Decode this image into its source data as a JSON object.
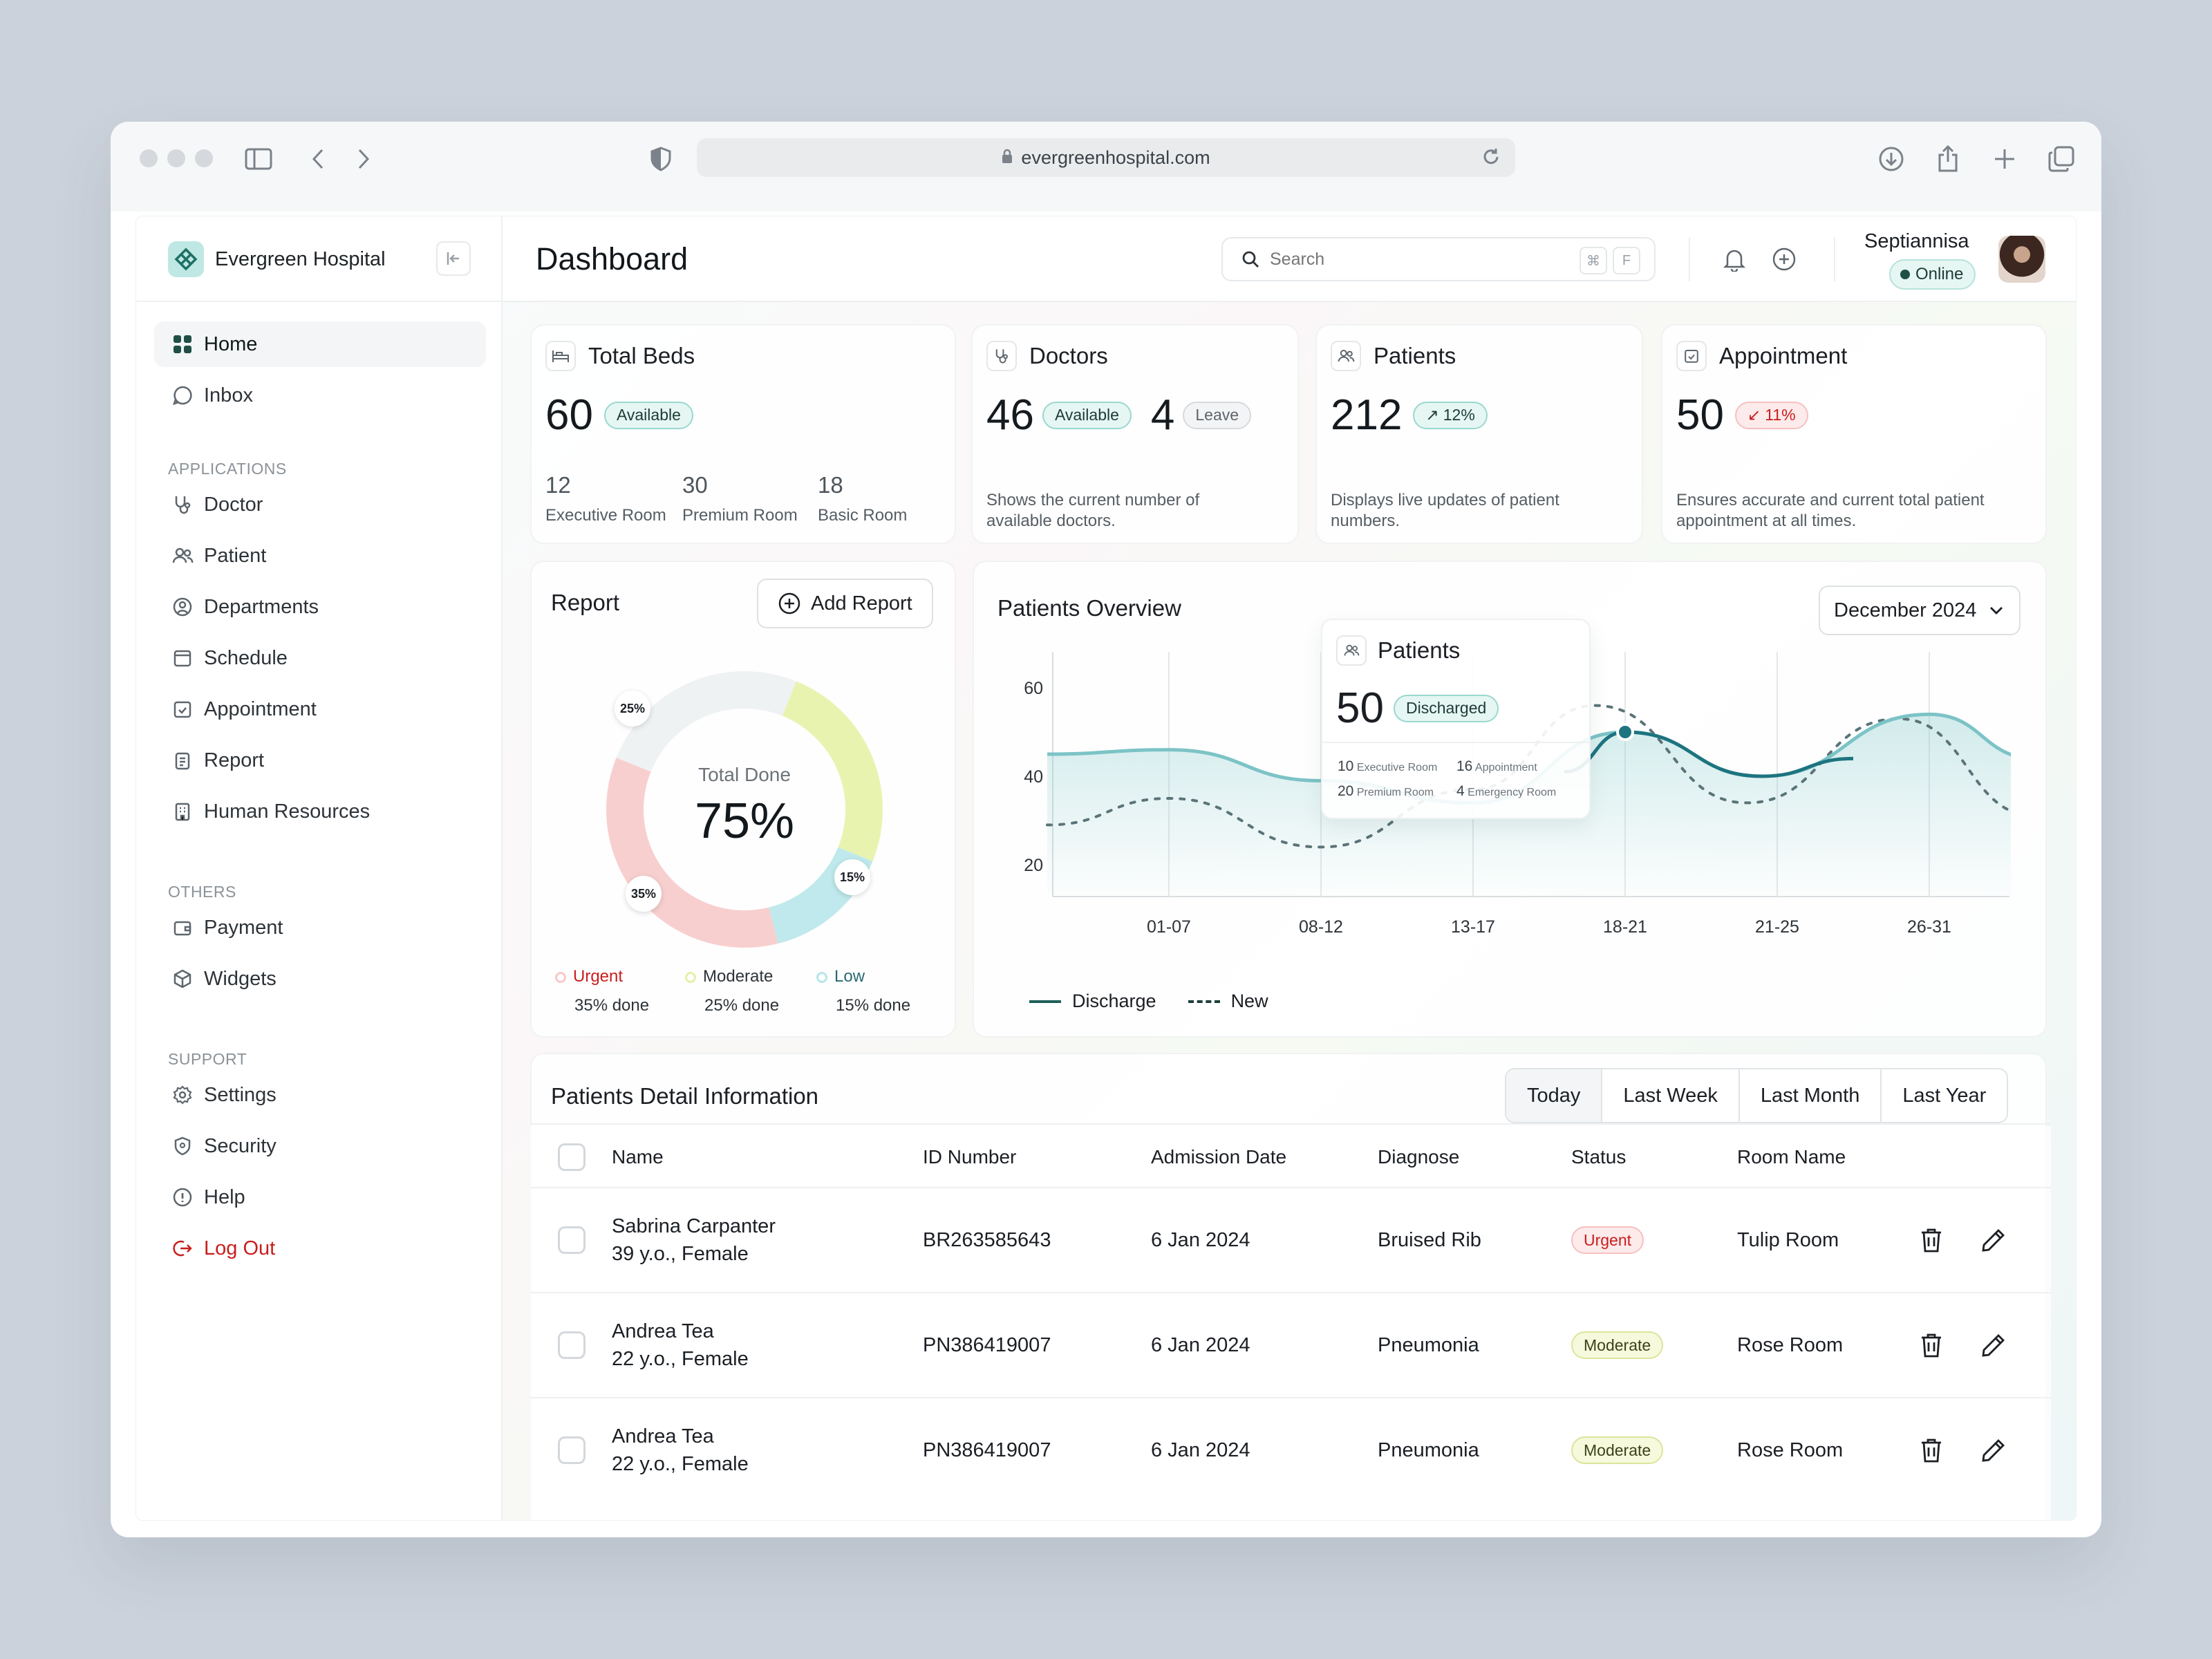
{
  "browser": {
    "url": "evergreenhospital.com"
  },
  "sidebar": {
    "brand": "Evergreen Hospital",
    "main_items": [
      {
        "label": "Home"
      },
      {
        "label": "Inbox"
      }
    ],
    "applications_heading": "APPLICATIONS",
    "applications": [
      {
        "label": "Doctor"
      },
      {
        "label": "Patient"
      },
      {
        "label": "Departments"
      },
      {
        "label": "Schedule"
      },
      {
        "label": "Appointment"
      },
      {
        "label": "Report"
      },
      {
        "label": "Human Resources"
      }
    ],
    "others_heading": "OTHERS",
    "others": [
      {
        "label": "Payment"
      },
      {
        "label": "Widgets"
      }
    ],
    "support_heading": "SUPPORT",
    "support": [
      {
        "label": "Settings"
      },
      {
        "label": "Security"
      },
      {
        "label": "Help"
      },
      {
        "label": "Log Out"
      }
    ]
  },
  "header": {
    "title": "Dashboard",
    "search_placeholder": "Search",
    "shortcut_cmd": "⌘",
    "shortcut_key": "F",
    "user_name": "Septiannisa",
    "user_status": "Online"
  },
  "cards": {
    "beds": {
      "title": "Total Beds",
      "value": "60",
      "badge": "Available",
      "rooms": [
        {
          "value": "12",
          "label": "Executive Room"
        },
        {
          "value": "30",
          "label": "Premium Room"
        },
        {
          "value": "18",
          "label": "Basic Room"
        }
      ]
    },
    "doctors": {
      "title": "Doctors",
      "value": "46",
      "badge": "Available",
      "leave_value": "4",
      "leave_badge": "Leave",
      "desc": "Shows the current number of available doctors."
    },
    "patients": {
      "title": "Patients",
      "value": "212",
      "trend": "12%",
      "desc": "Displays live updates of patient numbers."
    },
    "appointment": {
      "title": "Appointment",
      "value": "50",
      "trend": "11%",
      "desc": "Ensures accurate and current total patient appointment at all times."
    }
  },
  "report": {
    "title": "Report",
    "add_button": "Add Report",
    "center_label": "Total Done",
    "center_value": "75%",
    "segment_labels": [
      "25%",
      "15%",
      "35%"
    ],
    "legend": [
      {
        "name": "Urgent",
        "sub": "35% done",
        "color": "#f7c9c9"
      },
      {
        "name": "Moderate",
        "sub": "25% done",
        "color": "#e6f0a8"
      },
      {
        "name": "Low",
        "sub": "15% done",
        "color": "#b7e6ea"
      }
    ],
    "segments": [
      {
        "name": "Moderate",
        "value": 25,
        "color": "#e9f3b0"
      },
      {
        "name": "Low",
        "value": 15,
        "color": "#bfe9ec"
      },
      {
        "name": "Urgent",
        "value": 35,
        "color": "#f8cfcf"
      },
      {
        "name": "remaining",
        "value": 25,
        "color": "#eef2f2"
      }
    ]
  },
  "overview": {
    "title": "Patients Overview",
    "month": "December 2024",
    "tooltip": {
      "title": "Patients",
      "value": "50",
      "badge": "Discharged",
      "items": [
        {
          "value": "10",
          "label": "Executive Room"
        },
        {
          "value": "16",
          "label": "Appointment"
        },
        {
          "value": "20",
          "label": "Premium Room"
        },
        {
          "value": "4",
          "label": "Emergency Room"
        }
      ]
    },
    "legend": [
      "Discharge",
      "New"
    ]
  },
  "chart_data": {
    "type": "line",
    "x": [
      "01-07",
      "08-12",
      "13-17",
      "18-21",
      "21-25",
      "26-31"
    ],
    "ylim": [
      15,
      65
    ],
    "yticks": [
      20,
      40,
      60
    ],
    "series": [
      {
        "name": "Discharge",
        "style": "solid",
        "color": "#2c8c95",
        "points": [
          [
            -0.8,
            45
          ],
          [
            0,
            46
          ],
          [
            1,
            39
          ],
          [
            2,
            34
          ],
          [
            3,
            50
          ],
          [
            3.9,
            40
          ],
          [
            5,
            54
          ],
          [
            5.7,
            44
          ]
        ]
      },
      {
        "name": "New",
        "style": "dashed",
        "color": "#5a7478",
        "points": [
          [
            -0.8,
            29
          ],
          [
            0,
            35
          ],
          [
            1,
            24
          ],
          [
            2,
            37
          ],
          [
            2.8,
            56
          ],
          [
            3.8,
            34
          ],
          [
            4.8,
            53
          ],
          [
            5.7,
            31
          ]
        ]
      }
    ],
    "highlight": {
      "x": 3,
      "y": 50
    }
  },
  "table": {
    "title": "Patients Detail Information",
    "filters": [
      "Today",
      "Last Week",
      "Last Month",
      "Last Year"
    ],
    "columns": [
      "Name",
      "ID Number",
      "Admission Date",
      "Diagnose",
      "Status",
      "Room Name"
    ],
    "rows": [
      {
        "name": "Sabrina Carpanter",
        "sub": "39 y.o., Female",
        "id": "BR263585643",
        "date": "6 Jan 2024",
        "diag": "Bruised Rib",
        "status": "Urgent",
        "room": "Tulip Room"
      },
      {
        "name": "Andrea Tea",
        "sub": "22 y.o., Female",
        "id": "PN386419007",
        "date": "6 Jan 2024",
        "diag": "Pneumonia",
        "status": "Moderate",
        "room": "Rose Room"
      },
      {
        "name": "Andrea Tea",
        "sub": "22 y.o., Female",
        "id": "PN386419007",
        "date": "6 Jan 2024",
        "diag": "Pneumonia",
        "status": "Moderate",
        "room": "Rose Room"
      }
    ]
  },
  "colors": {
    "brand": "#1f6f66",
    "urgent": "#c81e1e",
    "accent": "#2c8c95"
  }
}
